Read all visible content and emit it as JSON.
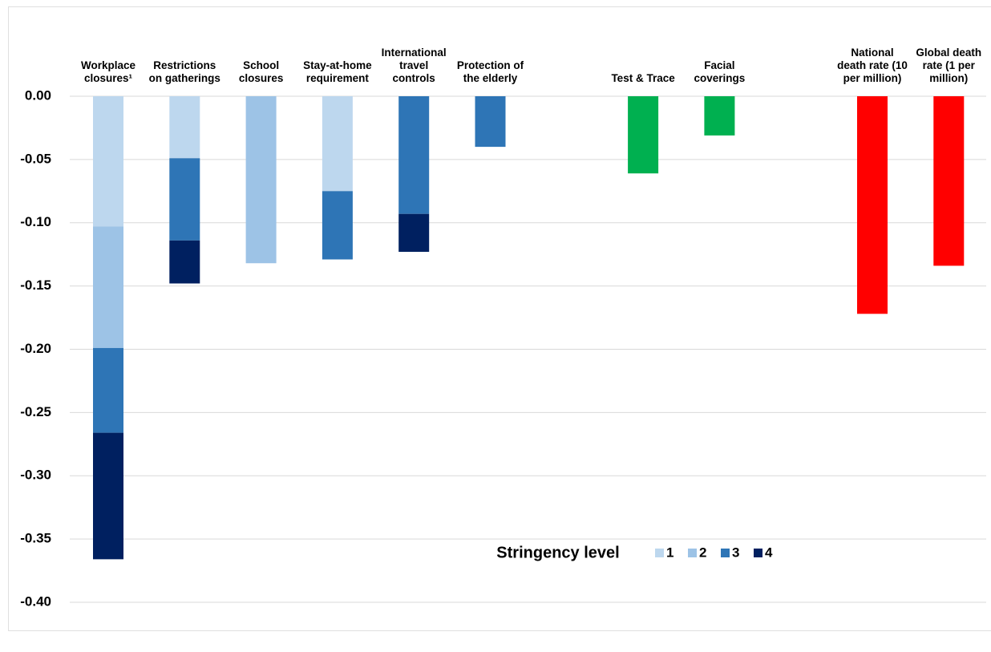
{
  "chart_data": {
    "type": "bar",
    "stacked": true,
    "categories": [
      "Workplace closures¹",
      "Restrictions on gatherings",
      "School closures",
      "Stay-at-home requirement",
      "International travel controls",
      "Protection of the elderly",
      null,
      "Test & Trace",
      "Facial coverings",
      null,
      "National death rate (10 per million)",
      "Global death rate (1 per million)"
    ],
    "series": [
      {
        "name": "1",
        "color": "#bdd7ee",
        "values": [
          -0.103,
          -0.049,
          null,
          -0.075,
          null,
          null,
          null,
          null,
          null,
          null,
          null,
          null
        ]
      },
      {
        "name": "2",
        "color": "#9dc3e6",
        "values": [
          -0.096,
          null,
          -0.132,
          null,
          null,
          null,
          null,
          null,
          null,
          null,
          null,
          null
        ]
      },
      {
        "name": "3",
        "color": "#2e75b6",
        "values": [
          -0.067,
          -0.065,
          null,
          -0.054,
          -0.093,
          -0.04,
          null,
          null,
          null,
          null,
          null,
          null
        ]
      },
      {
        "name": "4",
        "color": "#002060",
        "values": [
          -0.1,
          -0.034,
          null,
          null,
          -0.03,
          null,
          null,
          null,
          null,
          null,
          null,
          null
        ]
      },
      {
        "color": "#00b050",
        "values": [
          null,
          null,
          null,
          null,
          null,
          null,
          null,
          -0.061,
          -0.031,
          null,
          null,
          null
        ]
      },
      {
        "color": "#ff0000",
        "values": [
          null,
          null,
          null,
          null,
          null,
          null,
          null,
          null,
          null,
          null,
          -0.172,
          -0.134
        ]
      }
    ],
    "legend_title": "Stringency level",
    "ylim": [
      -0.4,
      0
    ],
    "yticks": [
      {
        "value": 0,
        "label": "0.00"
      },
      {
        "value": -0.05,
        "label": "-0.05"
      },
      {
        "value": -0.1,
        "label": "-0.10"
      },
      {
        "value": -0.15,
        "label": "-0.15"
      },
      {
        "value": -0.2,
        "label": "-0.20"
      },
      {
        "value": -0.25,
        "label": "-0.25"
      },
      {
        "value": -0.3,
        "label": "-0.30"
      },
      {
        "value": -0.35,
        "label": "-0.35"
      },
      {
        "value": -0.4,
        "label": "-0.40"
      }
    ],
    "grid": true
  }
}
